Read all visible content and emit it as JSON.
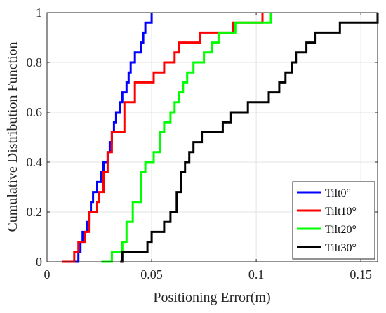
{
  "chart_data": {
    "type": "line",
    "title": "",
    "xlabel": "Positioning Error(m)",
    "ylabel": "Cumulative Distribution Function",
    "xlim": [
      0,
      0.158
    ],
    "ylim": [
      0,
      1
    ],
    "xticks": [
      0,
      0.05,
      0.1,
      0.15
    ],
    "xtick_labels": [
      "0",
      "0.05",
      "0.1",
      "0.15"
    ],
    "yticks": [
      0,
      0.2,
      0.4,
      0.6,
      0.8,
      1
    ],
    "ytick_labels": [
      "0",
      "0.2",
      "0.4",
      "0.6",
      "0.8",
      "1"
    ],
    "grid": true,
    "legend_position": "bottom-right",
    "series": [
      {
        "name": "Tilt0°",
        "color": "#0000ff",
        "x": [
          0.011,
          0.015,
          0.016,
          0.017,
          0.019,
          0.02,
          0.021,
          0.022,
          0.024,
          0.026,
          0.027,
          0.029,
          0.03,
          0.031,
          0.032,
          0.033,
          0.035,
          0.036,
          0.038,
          0.039,
          0.04,
          0.042,
          0.045,
          0.046,
          0.047,
          0.048,
          0.05
        ],
        "y": [
          0,
          0.04,
          0.08,
          0.12,
          0.16,
          0.2,
          0.24,
          0.28,
          0.32,
          0.36,
          0.4,
          0.44,
          0.48,
          0.52,
          0.56,
          0.6,
          0.64,
          0.68,
          0.72,
          0.76,
          0.8,
          0.84,
          0.88,
          0.92,
          0.96,
          0.96,
          1.0
        ]
      },
      {
        "name": "Tilt10°",
        "color": "#ff0000",
        "x": [
          0.007,
          0.013,
          0.015,
          0.018,
          0.02,
          0.024,
          0.025,
          0.027,
          0.029,
          0.031,
          0.037,
          0.042,
          0.051,
          0.056,
          0.061,
          0.063,
          0.07,
          0.073,
          0.081,
          0.089,
          0.102,
          0.103
        ],
        "y": [
          0,
          0.04,
          0.08,
          0.12,
          0.2,
          0.24,
          0.28,
          0.36,
          0.44,
          0.52,
          0.64,
          0.72,
          0.76,
          0.8,
          0.84,
          0.88,
          0.88,
          0.92,
          0.92,
          0.96,
          0.96,
          1.0
        ]
      },
      {
        "name": "Tilt20°",
        "color": "#00ff00",
        "x": [
          0.026,
          0.031,
          0.036,
          0.038,
          0.041,
          0.045,
          0.047,
          0.051,
          0.054,
          0.056,
          0.059,
          0.061,
          0.063,
          0.065,
          0.067,
          0.07,
          0.075,
          0.079,
          0.082,
          0.09,
          0.105,
          0.107
        ],
        "y": [
          0,
          0.04,
          0.08,
          0.16,
          0.24,
          0.36,
          0.4,
          0.44,
          0.52,
          0.56,
          0.6,
          0.64,
          0.68,
          0.72,
          0.76,
          0.8,
          0.84,
          0.88,
          0.92,
          0.96,
          0.96,
          1.0
        ]
      },
      {
        "name": "Tilt30°",
        "color": "#000000",
        "x": [
          0.035,
          0.036,
          0.048,
          0.05,
          0.056,
          0.059,
          0.062,
          0.064,
          0.066,
          0.068,
          0.07,
          0.074,
          0.084,
          0.088,
          0.096,
          0.106,
          0.111,
          0.114,
          0.117,
          0.119,
          0.124,
          0.128,
          0.134,
          0.14,
          0.142,
          0.158
        ],
        "y": [
          0,
          0.04,
          0.08,
          0.12,
          0.16,
          0.2,
          0.28,
          0.36,
          0.4,
          0.44,
          0.48,
          0.52,
          0.56,
          0.6,
          0.64,
          0.68,
          0.72,
          0.76,
          0.8,
          0.84,
          0.88,
          0.92,
          0.92,
          0.96,
          0.96,
          1.0
        ]
      }
    ]
  }
}
